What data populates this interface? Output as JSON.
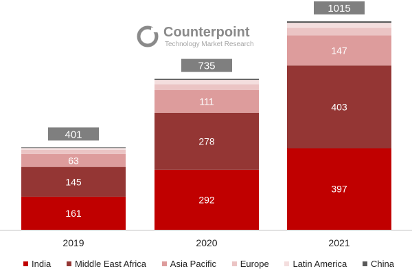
{
  "brand": {
    "name": "Counterpoint",
    "tagline": "Technology Market Research"
  },
  "chart_data": {
    "type": "stacked-bar",
    "categories": [
      "2019",
      "2020",
      "2021"
    ],
    "totals": [
      401,
      735,
      1015
    ],
    "series": [
      {
        "name": "India",
        "color": "#c00000",
        "values": [
          161,
          292,
          397
        ],
        "labels": [
          "161",
          "292",
          "397"
        ]
      },
      {
        "name": "Middle East Africa",
        "color": "#943634",
        "values": [
          145,
          278,
          403
        ],
        "labels": [
          "145",
          "278",
          "403"
        ]
      },
      {
        "name": "Asia Pacific",
        "color": "#dd9c9c",
        "values": [
          63,
          111,
          147
        ],
        "labels": [
          "63",
          "111",
          "147"
        ]
      },
      {
        "name": "Europe",
        "color": "#ebc4c4",
        "values": [
          20,
          28,
          36
        ],
        "labels": [
          "",
          "",
          ""
        ]
      },
      {
        "name": "Latin America",
        "color": "#f4dede",
        "values": [
          9,
          21,
          25
        ],
        "labels": [
          "",
          "",
          ""
        ]
      },
      {
        "name": "China",
        "color": "#595959",
        "values": [
          3,
          5,
          7
        ],
        "labels": [
          "",
          "",
          ""
        ]
      }
    ],
    "ylim": [
      0,
      1100
    ],
    "grid": false,
    "legend": "bottom"
  }
}
